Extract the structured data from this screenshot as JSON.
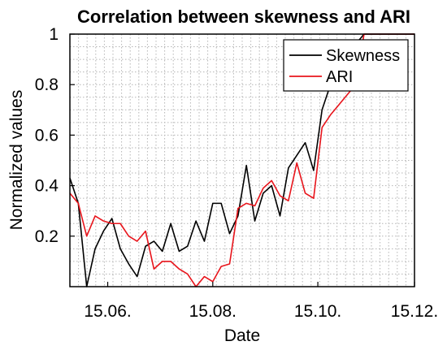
{
  "chart_data": {
    "type": "line",
    "title": "Correlation between skewness and ARI",
    "xlabel": "Date",
    "ylabel": "Normalized values",
    "ylim": [
      0,
      1
    ],
    "xlim": [
      0,
      41
    ],
    "x_ticks": [
      {
        "pos": 4.5,
        "label": "15.06."
      },
      {
        "pos": 17,
        "label": "15.08."
      },
      {
        "pos": 29.5,
        "label": "15.10."
      },
      {
        "pos": 41,
        "label": "15.12."
      }
    ],
    "y_ticks": [
      {
        "value": 0.2,
        "label": "0.2"
      },
      {
        "value": 0.4,
        "label": "0.4"
      },
      {
        "value": 0.6,
        "label": "0.6"
      },
      {
        "value": 0.8,
        "label": "0.8"
      },
      {
        "value": 1,
        "label": "1"
      }
    ],
    "grid": true,
    "legend_position": "top-right",
    "series": [
      {
        "name": "Skewness",
        "color": "#000000",
        "x": [
          0,
          1,
          2,
          3,
          4,
          5,
          6,
          7,
          8,
          9,
          10,
          11,
          12,
          13,
          14,
          15,
          16,
          17,
          18,
          19,
          20,
          21,
          22,
          23,
          24,
          25,
          26,
          27,
          28,
          29,
          30,
          31,
          32,
          33,
          34,
          35,
          36,
          37,
          38,
          39,
          40,
          41
        ],
        "values": [
          0.43,
          0.33,
          0.0,
          0.15,
          0.22,
          0.27,
          0.15,
          0.09,
          0.04,
          0.16,
          0.18,
          0.14,
          0.25,
          0.14,
          0.16,
          0.26,
          0.18,
          0.33,
          0.33,
          0.21,
          0.28,
          0.48,
          0.26,
          0.37,
          0.4,
          0.28,
          0.47,
          0.52,
          0.57,
          0.46,
          0.7,
          0.8,
          0.82,
          0.84,
          0.96,
          1.0,
          1.0,
          1.0,
          1.0,
          1.0,
          1.0,
          1.0
        ]
      },
      {
        "name": "ARI",
        "color": "#e8141b",
        "x": [
          0,
          1,
          2,
          3,
          4,
          5,
          6,
          7,
          8,
          9,
          10,
          11,
          12,
          13,
          14,
          15,
          16,
          17,
          18,
          19,
          20,
          21,
          22,
          23,
          24,
          25,
          26,
          27,
          28,
          29,
          30,
          31,
          32,
          33,
          34,
          35,
          36,
          37,
          38,
          39,
          40,
          41
        ],
        "values": [
          0.37,
          0.33,
          0.2,
          0.28,
          0.26,
          0.25,
          0.25,
          0.2,
          0.18,
          0.22,
          0.07,
          0.1,
          0.1,
          0.07,
          0.05,
          0.0,
          0.04,
          0.02,
          0.08,
          0.09,
          0.31,
          0.33,
          0.32,
          0.39,
          0.42,
          0.36,
          0.34,
          0.49,
          0.37,
          0.35,
          0.63,
          0.68,
          0.72,
          0.76,
          0.8,
          1.0,
          1.0,
          1.0,
          1.0,
          1.0,
          1.0,
          1.0
        ]
      }
    ]
  }
}
